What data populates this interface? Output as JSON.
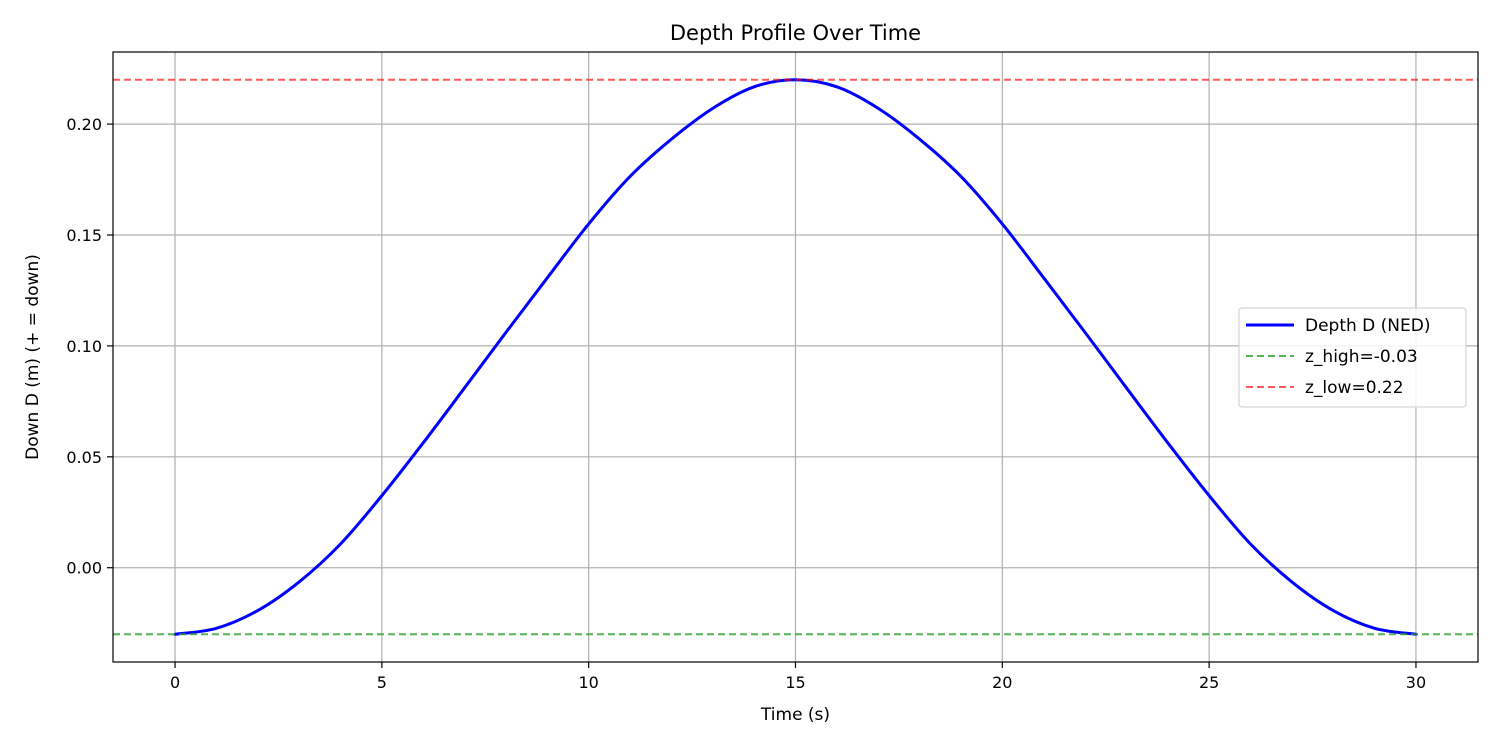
{
  "chart_data": {
    "type": "line",
    "title": "Depth Profile Over Time",
    "xlabel": "Time (s)",
    "ylabel": "Down D (m)  (+ = down)",
    "xlim": [
      -1.5,
      31.5
    ],
    "ylim": [
      -0.0425,
      0.2325
    ],
    "xticks": [
      0,
      5,
      10,
      15,
      20,
      25,
      30
    ],
    "xtick_labels": [
      "0",
      "5",
      "10",
      "15",
      "20",
      "25",
      "30"
    ],
    "yticks": [
      0.0,
      0.05,
      0.1,
      0.15,
      0.2
    ],
    "ytick_labels": [
      "0.00",
      "0.05",
      "0.10",
      "0.15",
      "0.20"
    ],
    "grid": true,
    "legend_position": "center-right",
    "series": [
      {
        "name": "Depth D (NED)",
        "color": "#0000ff",
        "style": "solid",
        "x": [
          0,
          1,
          2,
          3,
          4,
          5,
          6,
          7,
          8,
          9,
          10,
          11,
          12,
          13,
          14,
          15,
          16,
          17,
          18,
          19,
          20,
          21,
          22,
          23,
          24,
          25,
          26,
          27,
          28,
          29,
          30
        ],
        "y": [
          -0.03,
          -0.0273,
          -0.0193,
          -0.0064,
          0.0107,
          0.0325,
          0.0563,
          0.0811,
          0.1061,
          0.1307,
          0.155,
          0.1764,
          0.1932,
          0.2071,
          0.2168,
          0.22,
          0.2168,
          0.2071,
          0.1932,
          0.1764,
          0.155,
          0.1307,
          0.1061,
          0.0811,
          0.0563,
          0.0325,
          0.0107,
          -0.0064,
          -0.0193,
          -0.0273,
          -0.03
        ]
      },
      {
        "name": "z_high=-0.03",
        "color": "#2ca02c",
        "style": "dashed",
        "hline": -0.03
      },
      {
        "name": "z_low=0.22",
        "color": "#ff0000",
        "style": "dashed",
        "hline": 0.22
      }
    ]
  }
}
